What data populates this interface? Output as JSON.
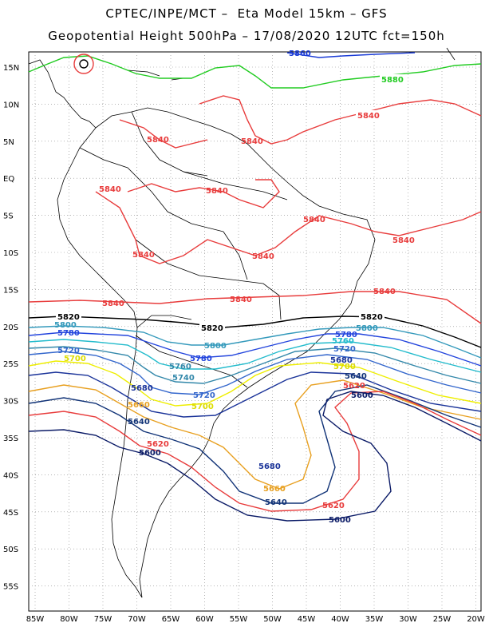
{
  "header": {
    "line1": "CPTEC/INPE/MCT –  Eta Model 15km – GFS",
    "line2": "Geopotential Height 500hPa – 17/08/2020 12UTC fct=150h"
  },
  "lat_labels": [
    "15N",
    "10N",
    "5N",
    "EQ",
    "5S",
    "10S",
    "15S",
    "20S",
    "25S",
    "30S",
    "35S",
    "40S",
    "45S",
    "50S",
    "55S"
  ],
  "lon_labels": [
    "85W",
    "80W",
    "75W",
    "70W",
    "65W",
    "60W",
    "55W",
    "50W",
    "45W",
    "40W",
    "35W",
    "30W",
    "25W",
    "20W"
  ],
  "contours": [
    {
      "value": "5880",
      "color": "#22cc22"
    },
    {
      "value": "5860",
      "color": "#1a3bd6"
    },
    {
      "value": "5840",
      "color": "#e83c3c"
    },
    {
      "value": "5820",
      "color": "#000000"
    },
    {
      "value": "5800",
      "color": "#3399bb"
    },
    {
      "value": "5780",
      "color": "#2244dd"
    },
    {
      "value": "5760",
      "color": "#22bbcc"
    },
    {
      "value": "5740",
      "color": "#3388aa"
    },
    {
      "value": "5720",
      "color": "#3366cc"
    },
    {
      "value": "5700",
      "color": "#eeee00"
    },
    {
      "value": "5680",
      "color": "#1a3399"
    },
    {
      "value": "5660",
      "color": "#e8a020"
    },
    {
      "value": "5640",
      "color": "#113377"
    },
    {
      "value": "5620",
      "color": "#e83c3c"
    },
    {
      "value": "5600",
      "color": "#0a1a66"
    }
  ]
}
